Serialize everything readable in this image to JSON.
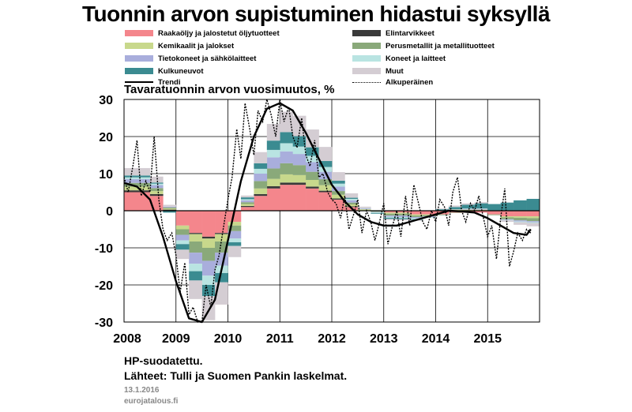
{
  "title": "Tuonnin arvon supistuminen hidastui syksyllä",
  "legend": [
    {
      "label": "Raakaöljy ja jalostetut öljytuotteet",
      "color": "#f4868c",
      "kind": "box"
    },
    {
      "label": "Elintarvikkeet",
      "color": "#3a3a3a",
      "kind": "box"
    },
    {
      "label": "Kemikaalit ja jalokset",
      "color": "#c8d88c",
      "kind": "box"
    },
    {
      "label": "Perusmetallit ja metallituotteet",
      "color": "#8aa97a",
      "kind": "box"
    },
    {
      "label": "Tietokoneet ja sähkölaitteet",
      "color": "#a9aedc",
      "kind": "box"
    },
    {
      "label": "Koneet ja laitteet",
      "color": "#b9e4e2",
      "kind": "box"
    },
    {
      "label": "Kulkuneuvot",
      "color": "#3b8b91",
      "kind": "box"
    },
    {
      "label": "Muut",
      "color": "#d4cdd3",
      "kind": "box"
    },
    {
      "label": "Trendi",
      "color": "#000000",
      "kind": "line"
    },
    {
      "label": "Alkuperäinen",
      "color": "#000000",
      "kind": "dotted"
    }
  ],
  "notes": [
    "HP-suodatettu.",
    "Lähteet: Tulli ja Suomen Pankin laskelmat."
  ],
  "date": "13.1.2016",
  "site": "eurojatalous.fi",
  "chart_data": {
    "type": "area",
    "ylabel": "Tavaratuonnin arvon vuosimuutos, %",
    "ylim": [
      -30,
      30
    ],
    "yticks": [
      "30",
      "20",
      "10",
      "0",
      "-10",
      "-20",
      "-30"
    ],
    "xticks": [
      "2008",
      "2009",
      "2010",
      "2011",
      "2012",
      "2013",
      "2014",
      "2015"
    ],
    "x": [
      2008.0,
      2008.25,
      2008.5,
      2008.75,
      2009.0,
      2009.25,
      2009.5,
      2009.75,
      2010.0,
      2010.25,
      2010.5,
      2010.75,
      2011.0,
      2011.25,
      2011.5,
      2011.75,
      2012.0,
      2012.25,
      2012.5,
      2012.75,
      2013.0,
      2013.25,
      2013.5,
      2013.75,
      2014.0,
      2014.25,
      2014.5,
      2014.75,
      2015.0,
      2015.25,
      2015.5,
      2015.75
    ],
    "stacked": true,
    "series": [
      {
        "name": "Raakaöljy ja jalostetut öljytuotteet",
        "color": "#f4868c",
        "values": [
          5,
          5,
          4,
          0,
          -4,
          -6,
          -7,
          -6,
          -3,
          1,
          4,
          6,
          7,
          7,
          6,
          5,
          3,
          1,
          0,
          0,
          -0.5,
          -0.5,
          -1,
          -1,
          -1,
          -0.5,
          -0.5,
          -0.5,
          -1,
          -1.5,
          -1.5,
          -1.5
        ]
      },
      {
        "name": "Elintarvikkeet",
        "color": "#3a3a3a",
        "values": [
          0.5,
          0.5,
          0.5,
          0.3,
          0,
          -0.3,
          -0.5,
          -0.3,
          0,
          0.3,
          0.5,
          0.6,
          0.6,
          0.6,
          0.5,
          0.4,
          0.3,
          0.2,
          0.1,
          0,
          0,
          0,
          0,
          0,
          0.1,
          0.1,
          0.1,
          0.1,
          0,
          0,
          0,
          0
        ]
      },
      {
        "name": "Kemikaalit ja jalokset",
        "color": "#c8d88c",
        "values": [
          1,
          1,
          0.8,
          0.3,
          -1,
          -2,
          -2.5,
          -2,
          -1,
          0.5,
          1.5,
          2,
          2.2,
          2,
          1.8,
          1.5,
          1,
          0.5,
          0.3,
          0,
          -0.3,
          -0.3,
          -0.3,
          -0.2,
          0,
          0.2,
          0.2,
          0.2,
          0,
          -0.3,
          -0.4,
          -0.5
        ]
      },
      {
        "name": "Perusmetallit ja metallituotteet",
        "color": "#8aa97a",
        "values": [
          1,
          1,
          0.8,
          0.3,
          -1.5,
          -3,
          -3.5,
          -3,
          -1.5,
          0.5,
          2,
          2.8,
          3,
          2.7,
          2.2,
          1.6,
          1,
          0.5,
          0,
          -0.3,
          -0.5,
          -0.5,
          -0.4,
          -0.3,
          -0.2,
          -0.1,
          0,
          0,
          -0.2,
          -0.5,
          -0.7,
          -0.8
        ]
      },
      {
        "name": "Tietokoneet ja sähkölaitteet",
        "color": "#a9aedc",
        "values": [
          1,
          1,
          0.8,
          0.2,
          -1.5,
          -3,
          -4,
          -3.5,
          -2,
          0.5,
          2,
          3,
          3.2,
          3,
          2.6,
          2,
          1.2,
          0.6,
          0.2,
          -0.1,
          -0.3,
          -0.4,
          -0.3,
          -0.2,
          0,
          0.1,
          0.2,
          0.2,
          0,
          -0.2,
          -0.3,
          -0.3
        ]
      },
      {
        "name": "Koneet ja laitteet",
        "color": "#b9e4e2",
        "values": [
          0.5,
          0.5,
          0.4,
          0,
          -1,
          -2,
          -2.5,
          -2,
          -1,
          0.3,
          1.3,
          2,
          2.2,
          2,
          1.7,
          1.3,
          0.8,
          0.4,
          0.1,
          -0.2,
          -0.3,
          -0.3,
          -0.3,
          -0.2,
          -0.1,
          0,
          0.1,
          0.1,
          0,
          -0.1,
          -0.2,
          -0.2
        ]
      },
      {
        "name": "Kulkuneuvot",
        "color": "#3b8b91",
        "values": [
          0.5,
          0.5,
          0.3,
          -0.5,
          -1.5,
          -2.5,
          -3,
          -2.5,
          -1,
          0.5,
          1.5,
          2.5,
          3,
          2.8,
          2.3,
          1.6,
          0.8,
          0.3,
          0,
          -0.2,
          -0.3,
          -0.3,
          -0.2,
          0,
          0.3,
          0.6,
          1,
          1.4,
          1.8,
          2.2,
          2.8,
          3.2
        ]
      },
      {
        "name": "Muut",
        "color": "#d4cdd3",
        "values": [
          2,
          2,
          1.6,
          0.5,
          -2.5,
          -5,
          -6.5,
          -6,
          -3,
          0.5,
          3,
          4.5,
          5.5,
          5.5,
          4.8,
          3.8,
          2.3,
          1.2,
          0.4,
          0,
          -0.3,
          -0.3,
          -0.2,
          0,
          0.2,
          0.4,
          0.4,
          0.3,
          0,
          -0.4,
          -0.7,
          -0.9
        ]
      }
    ],
    "trend": {
      "name": "Trendi",
      "x": [
        2008.0,
        2008.25,
        2008.5,
        2008.75,
        2009.0,
        2009.25,
        2009.5,
        2009.75,
        2010.0,
        2010.25,
        2010.5,
        2010.75,
        2011.0,
        2011.25,
        2011.5,
        2011.75,
        2012.0,
        2012.25,
        2012.5,
        2012.75,
        2013.0,
        2013.25,
        2013.5,
        2013.75,
        2014.0,
        2014.25,
        2014.5,
        2014.75,
        2015.0,
        2015.25,
        2015.5,
        2015.75,
        2015.83
      ],
      "values": [
        7.5,
        6.5,
        3,
        -7,
        -19,
        -29,
        -30,
        -24,
        -8,
        8,
        20,
        27.5,
        29,
        27,
        21,
        14,
        7,
        2.5,
        -1,
        -3,
        -4,
        -4,
        -3,
        -2,
        -1,
        0,
        -0.2,
        -0.5,
        -2,
        -4,
        -6,
        -6.5,
        -5
      ]
    },
    "original": {
      "name": "Alkuperäinen",
      "x": [
        2008.0,
        2008.08,
        2008.17,
        2008.25,
        2008.33,
        2008.42,
        2008.5,
        2008.58,
        2008.67,
        2008.75,
        2008.83,
        2008.92,
        2009.0,
        2009.08,
        2009.17,
        2009.25,
        2009.33,
        2009.42,
        2009.5,
        2009.58,
        2009.67,
        2009.75,
        2009.83,
        2009.92,
        2010.0,
        2010.08,
        2010.17,
        2010.25,
        2010.33,
        2010.42,
        2010.5,
        2010.58,
        2010.67,
        2010.75,
        2010.83,
        2010.92,
        2011.0,
        2011.08,
        2011.17,
        2011.25,
        2011.33,
        2011.42,
        2011.5,
        2011.58,
        2011.67,
        2011.75,
        2011.83,
        2011.92,
        2012.0,
        2012.08,
        2012.17,
        2012.25,
        2012.33,
        2012.42,
        2012.5,
        2012.58,
        2012.67,
        2012.75,
        2012.83,
        2012.92,
        2013.0,
        2013.08,
        2013.17,
        2013.25,
        2013.33,
        2013.42,
        2013.5,
        2013.58,
        2013.67,
        2013.75,
        2013.83,
        2013.92,
        2014.0,
        2014.08,
        2014.17,
        2014.25,
        2014.33,
        2014.42,
        2014.5,
        2014.58,
        2014.67,
        2014.75,
        2014.83,
        2014.92,
        2015.0,
        2015.08,
        2015.17,
        2015.25,
        2015.33,
        2015.42,
        2015.5,
        2015.58,
        2015.67,
        2015.75,
        2015.83
      ],
      "values": [
        9,
        5,
        12,
        19,
        4,
        8,
        5,
        20,
        3,
        -5,
        -8,
        -6,
        -12,
        -22,
        -14,
        -28,
        -26,
        -33,
        -31,
        -20,
        -26,
        -16,
        -12,
        -4,
        3,
        9,
        22,
        14,
        29,
        22,
        15,
        27,
        24,
        33,
        26,
        20,
        31,
        24,
        28,
        20,
        17,
        25,
        15,
        12,
        19,
        9,
        10,
        5,
        3,
        2,
        -2,
        4,
        -5,
        -1,
        3,
        -6,
        0,
        -3,
        -8,
        -3,
        2,
        -9,
        -4,
        0,
        -7,
        4,
        -4,
        7,
        2,
        -3,
        -5,
        0,
        -3,
        3,
        1,
        -4,
        5,
        9,
        0,
        -3,
        2,
        0,
        4,
        -2,
        -7,
        -4,
        -13,
        -2,
        6,
        -15,
        -11,
        -6,
        -8,
        -5,
        -6
      ]
    }
  }
}
